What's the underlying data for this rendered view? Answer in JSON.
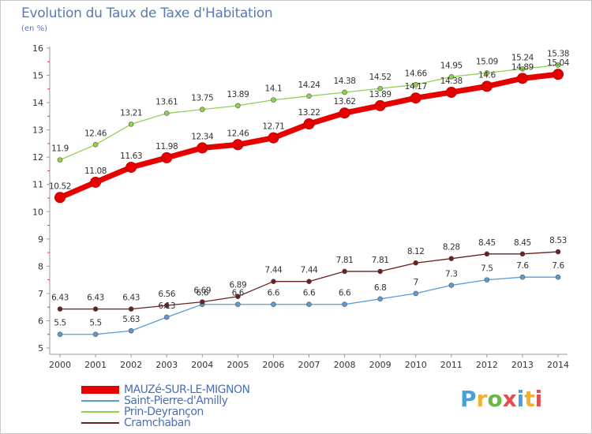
{
  "header": {
    "title": "Evolution du Taux de Taxe d'Habitation",
    "subtitle": "(en %)"
  },
  "logo": {
    "text": "Proxiti",
    "colors": [
      "#4aa0d8",
      "#f0b030",
      "#6bb84a",
      "#e05050",
      "#4aa0d8",
      "#f0b030",
      "#e05050"
    ]
  },
  "chart_data": {
    "type": "line",
    "title": "Evolution du Taux de Taxe d'Habitation",
    "subtitle": "(en %)",
    "x": [
      "2000",
      "2001",
      "2002",
      "2003",
      "2004",
      "2005",
      "2006",
      "2007",
      "2008",
      "2009",
      "2010",
      "2011",
      "2012",
      "2013",
      "2014"
    ],
    "ylim": [
      5,
      16
    ],
    "yticks": [
      "5",
      "6",
      "7",
      "8",
      "9",
      "10",
      "11",
      "12",
      "13",
      "14",
      "15",
      "16"
    ],
    "grid": false,
    "legend_position": "bottom-left",
    "series": [
      {
        "name": "MAUZé-SUR-LE-MIGNON",
        "color": "#e60000",
        "values": [
          10.52,
          11.08,
          11.63,
          11.98,
          12.34,
          12.46,
          12.71,
          13.22,
          13.62,
          13.89,
          14.17,
          14.38,
          14.6,
          14.89,
          15.04
        ],
        "labels": [
          "10.52",
          "11.08",
          "11.63",
          "11.98",
          "12.34",
          "12.46",
          "12.71",
          "13.22",
          "13.62",
          "13.89",
          "14.17",
          "14.38",
          "14.6",
          "14.89",
          "15.04"
        ]
      },
      {
        "name": "Saint-Pierre-d'Amilly",
        "color": "#5a9bd5",
        "values": [
          5.5,
          5.5,
          5.63,
          6.13,
          6.6,
          6.6,
          6.6,
          6.6,
          6.6,
          6.8,
          7,
          7.3,
          7.5,
          7.6,
          7.6
        ],
        "labels": [
          "5.5",
          "5.5",
          "5.63",
          "6.13",
          "6.6",
          "6.6",
          "6.6",
          "6.6",
          "6.6",
          "6.8",
          "7",
          "7.3",
          "7.5",
          "7.6",
          "7.6"
        ]
      },
      {
        "name": "Prin-Deyrançon",
        "color": "#8fd14f",
        "values": [
          11.9,
          12.46,
          13.21,
          13.61,
          13.75,
          13.89,
          14.1,
          14.24,
          14.38,
          14.52,
          14.66,
          14.95,
          15.09,
          15.24,
          15.38
        ],
        "labels": [
          "11.9",
          "12.46",
          "13.21",
          "13.61",
          "13.75",
          "13.89",
          "14.1",
          "14.24",
          "14.38",
          "14.52",
          "14.66",
          "14.95",
          "15.09",
          "15.24",
          "15.38"
        ]
      },
      {
        "name": "Cramchaban",
        "color": "#6b1f1f",
        "values": [
          6.43,
          6.43,
          6.43,
          6.56,
          6.69,
          6.89,
          7.44,
          7.44,
          7.81,
          7.81,
          8.12,
          8.28,
          8.45,
          8.45,
          8.53
        ],
        "labels": [
          "6.43",
          "6.43",
          "6.43",
          "6.56",
          "6.69",
          "6.89",
          "7.44",
          "7.44",
          "7.81",
          "7.81",
          "8.12",
          "8.28",
          "8.45",
          "8.45",
          "8.53"
        ]
      }
    ]
  }
}
